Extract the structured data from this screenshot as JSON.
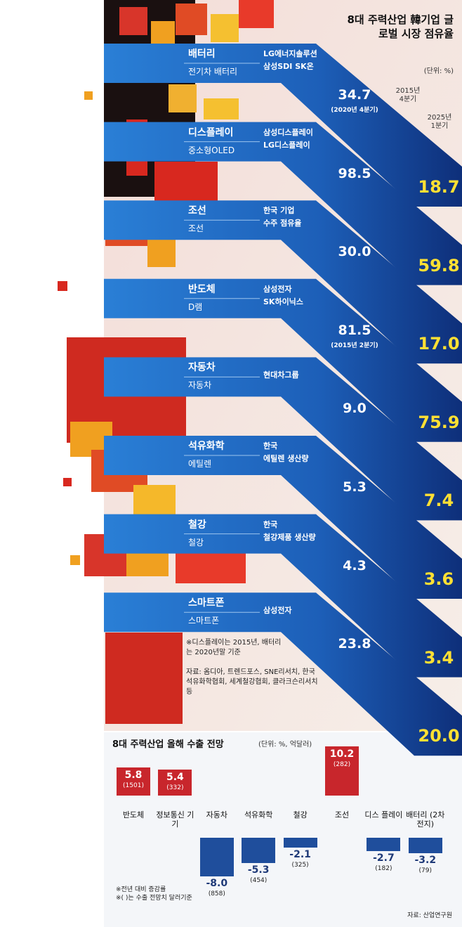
{
  "chart_data": [
    {
      "type": "arrow",
      "title": "8대 주력산업 韓기업 글로벌 시장 점유율",
      "unit": "(단위: %)",
      "categories": [
        "배터리",
        "디스플레이",
        "조선",
        "반도체",
        "자동차",
        "석유화학",
        "철강",
        "스마트폰"
      ],
      "products": [
        "전기차 배터리",
        "중소형OLED",
        "조선",
        "D램",
        "자동차",
        "에틸렌",
        "철강",
        "스마트폰"
      ],
      "companies": [
        [
          "LG에너지솔루션",
          "삼성SDI SK온"
        ],
        [
          "삼성디스플레이",
          "LG디스플레이"
        ],
        [
          "한국 기업",
          "수주 점유율"
        ],
        [
          "삼성전자",
          "SK하이닉스"
        ],
        [
          "현대차그룹"
        ],
        [
          "한국",
          "에틸렌 생산량"
        ],
        [
          "한국",
          "철강제품 생산량"
        ],
        [
          "삼성전자"
        ]
      ],
      "series": [
        {
          "name": "2015년 4분기",
          "color": "#ffffff",
          "values": [
            34.7,
            98.5,
            30.0,
            81.5,
            9.0,
            5.3,
            4.3,
            23.8
          ],
          "value_labels": [
            "34.7",
            "98.5",
            "30.0",
            "81.5",
            "9.0",
            "5.3",
            "4.3",
            "23.8"
          ],
          "value_notes": [
            "(2020년 4분기)",
            null,
            null,
            "(2015년 2분기)",
            null,
            null,
            null,
            null
          ]
        },
        {
          "name": "2025년 1분기",
          "color": "#ffe033",
          "values": [
            18.7,
            59.8,
            17.0,
            75.9,
            7.4,
            3.6,
            3.4,
            20.0
          ],
          "value_labels": [
            "18.7",
            "59.8",
            "17.0",
            "75.9",
            "7.4",
            "3.6",
            "3.4",
            "20.0"
          ]
        }
      ],
      "notes": [
        "※디스플레이는 2015년, 배터리는 2020년말 기준",
        "자료: 옴디아, 트렌드포스, SNE리서치, 한국석유화학협회, 세계철강협회, 클라크슨리서치 등"
      ]
    },
    {
      "type": "bar",
      "title": "8대 주력산업 올해 수출 전망",
      "unit": "(단위: %, 억달러)",
      "categories": [
        "반도체",
        "정보통신 기기",
        "자동차",
        "석유화학",
        "철강",
        "조선",
        "디스 플레이",
        "배터리 (2차전지)"
      ],
      "values": [
        5.8,
        5.4,
        -8.0,
        -5.3,
        -2.1,
        10.2,
        -2.7,
        -3.2
      ],
      "value_labels": [
        "5.8",
        "5.4",
        "-8.0",
        "-5.3",
        "-2.1",
        "10.2",
        "-2.7",
        "-3.2"
      ],
      "amounts": [
        1501,
        332,
        858,
        454,
        325,
        282,
        182,
        79
      ],
      "amount_labels": [
        "(1501)",
        "(332)",
        "(858)",
        "(454)",
        "(325)",
        "(282)",
        "(182)",
        "(79)"
      ],
      "positive_color": "#c8262c",
      "negative_color": "#1f4e9c",
      "notes": [
        "※전년 대비 증감률",
        "※( )는 수출 전망치 달러기준"
      ],
      "source": "자료: 산업연구원"
    }
  ]
}
